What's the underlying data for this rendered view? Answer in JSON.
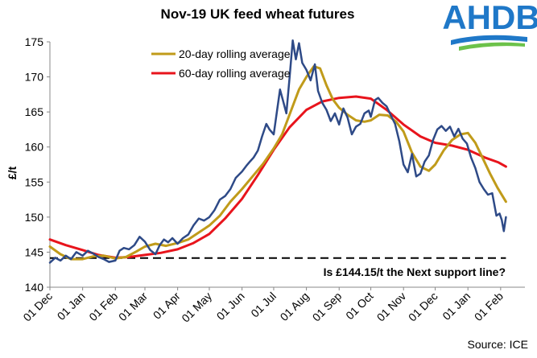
{
  "chart_data": {
    "type": "line",
    "title": "Nov-19 UK feed wheat futures",
    "ylabel": "£/t",
    "xlabel": "",
    "ylim": [
      140,
      175
    ],
    "yticks": [
      "140",
      "145",
      "150",
      "155",
      "160",
      "165",
      "170",
      "175"
    ],
    "xticks": [
      {
        "label": "01 Dec",
        "day": 0
      },
      {
        "label": "01 Jan",
        "day": 31
      },
      {
        "label": "01 Feb",
        "day": 62
      },
      {
        "label": "01 Mar",
        "day": 90
      },
      {
        "label": "01 Apr",
        "day": 121
      },
      {
        "label": "01 May",
        "day": 151
      },
      {
        "label": "01 Jun",
        "day": 182
      },
      {
        "label": "01 Jul",
        "day": 212
      },
      {
        "label": "01 Aug",
        "day": 243
      },
      {
        "label": "01 Sep",
        "day": 274
      },
      {
        "label": "01 Oct",
        "day": 304
      },
      {
        "label": "01 Nov",
        "day": 335
      },
      {
        "label": "01 Dec",
        "day": 365
      },
      {
        "label": "01 Jan",
        "day": 396
      },
      {
        "label": "01 Feb",
        "day": 427
      }
    ],
    "xlim": [
      0,
      450
    ],
    "grid": false,
    "legend_position": "top-center",
    "series": [
      {
        "name": "Nov-19 UK feed wheat futures",
        "color": "#2e4a87",
        "legend": false,
        "points": [
          [
            0,
            143.5
          ],
          [
            5,
            144.2
          ],
          [
            10,
            143.8
          ],
          [
            15,
            144.5
          ],
          [
            20,
            144.0
          ],
          [
            25,
            145.0
          ],
          [
            31,
            144.5
          ],
          [
            36,
            145.2
          ],
          [
            41,
            144.8
          ],
          [
            46,
            144.3
          ],
          [
            51,
            144.0
          ],
          [
            56,
            143.6
          ],
          [
            62,
            143.8
          ],
          [
            66,
            145.2
          ],
          [
            70,
            145.6
          ],
          [
            75,
            145.4
          ],
          [
            80,
            146.0
          ],
          [
            85,
            147.2
          ],
          [
            90,
            146.5
          ],
          [
            95,
            145.3
          ],
          [
            100,
            144.7
          ],
          [
            104,
            146.0
          ],
          [
            108,
            146.8
          ],
          [
            112,
            146.4
          ],
          [
            116,
            147.0
          ],
          [
            121,
            146.2
          ],
          [
            126,
            147.0
          ],
          [
            131,
            147.5
          ],
          [
            136,
            148.8
          ],
          [
            141,
            149.8
          ],
          [
            146,
            149.5
          ],
          [
            151,
            150.0
          ],
          [
            156,
            151.0
          ],
          [
            161,
            152.5
          ],
          [
            166,
            153.0
          ],
          [
            171,
            154.0
          ],
          [
            176,
            155.6
          ],
          [
            182,
            156.5
          ],
          [
            186,
            157.3
          ],
          [
            190,
            158.0
          ],
          [
            193,
            158.5
          ],
          [
            197,
            159.5
          ],
          [
            201,
            161.5
          ],
          [
            205,
            163.3
          ],
          [
            208,
            162.5
          ],
          [
            212,
            161.8
          ],
          [
            215,
            165.0
          ],
          [
            218,
            168.2
          ],
          [
            221,
            166.5
          ],
          [
            224,
            164.8
          ],
          [
            227,
            169.8
          ],
          [
            230,
            175.2
          ],
          [
            233,
            172.5
          ],
          [
            236,
            174.8
          ],
          [
            239,
            172.0
          ],
          [
            243,
            171.0
          ],
          [
            247,
            169.5
          ],
          [
            251,
            171.8
          ],
          [
            254,
            168.0
          ],
          [
            258,
            166.3
          ],
          [
            262,
            165.3
          ],
          [
            266,
            163.7
          ],
          [
            270,
            164.8
          ],
          [
            274,
            163.2
          ],
          [
            278,
            165.5
          ],
          [
            282,
            164.2
          ],
          [
            286,
            161.8
          ],
          [
            290,
            162.9
          ],
          [
            294,
            163.3
          ],
          [
            298,
            164.8
          ],
          [
            302,
            165.2
          ],
          [
            304,
            164.3
          ],
          [
            308,
            166.7
          ],
          [
            311,
            167.0
          ],
          [
            315,
            166.3
          ],
          [
            319,
            165.8
          ],
          [
            323,
            164.5
          ],
          [
            327,
            163.3
          ],
          [
            331,
            160.8
          ],
          [
            335,
            157.5
          ],
          [
            339,
            156.4
          ],
          [
            343,
            159.0
          ],
          [
            347,
            155.8
          ],
          [
            351,
            156.2
          ],
          [
            355,
            157.9
          ],
          [
            359,
            158.8
          ],
          [
            363,
            161.0
          ],
          [
            367,
            162.5
          ],
          [
            371,
            163.0
          ],
          [
            375,
            162.3
          ],
          [
            379,
            162.9
          ],
          [
            383,
            161.5
          ],
          [
            387,
            162.6
          ],
          [
            391,
            161.2
          ],
          [
            395,
            160.5
          ],
          [
            399,
            158.5
          ],
          [
            403,
            157.0
          ],
          [
            407,
            155.0
          ],
          [
            411,
            154.0
          ],
          [
            415,
            153.2
          ],
          [
            419,
            153.4
          ],
          [
            423,
            150.2
          ],
          [
            426,
            150.5
          ],
          [
            428,
            149.6
          ],
          [
            430,
            148.0
          ],
          [
            432,
            150.0
          ]
        ]
      },
      {
        "name": "20-day rolling average",
        "color": "#c09b1a",
        "legend": true,
        "points": [
          [
            0,
            145.8
          ],
          [
            10,
            144.7
          ],
          [
            20,
            144.0
          ],
          [
            31,
            144.0
          ],
          [
            41,
            144.4
          ],
          [
            51,
            144.5
          ],
          [
            62,
            144.1
          ],
          [
            72,
            144.3
          ],
          [
            82,
            145.1
          ],
          [
            90,
            145.8
          ],
          [
            100,
            146.2
          ],
          [
            110,
            145.9
          ],
          [
            121,
            146.3
          ],
          [
            131,
            146.8
          ],
          [
            141,
            147.8
          ],
          [
            151,
            148.8
          ],
          [
            161,
            150.2
          ],
          [
            171,
            152.2
          ],
          [
            182,
            154.0
          ],
          [
            192,
            155.8
          ],
          [
            202,
            157.6
          ],
          [
            212,
            159.8
          ],
          [
            220,
            161.8
          ],
          [
            228,
            165.0
          ],
          [
            236,
            168.2
          ],
          [
            243,
            170.0
          ],
          [
            250,
            171.5
          ],
          [
            256,
            171.2
          ],
          [
            262,
            168.8
          ],
          [
            268,
            166.8
          ],
          [
            274,
            165.6
          ],
          [
            282,
            164.6
          ],
          [
            290,
            163.8
          ],
          [
            298,
            163.6
          ],
          [
            304,
            163.8
          ],
          [
            312,
            164.6
          ],
          [
            320,
            164.5
          ],
          [
            328,
            163.6
          ],
          [
            335,
            162.2
          ],
          [
            343,
            159.2
          ],
          [
            351,
            157.2
          ],
          [
            359,
            156.6
          ],
          [
            365,
            157.5
          ],
          [
            373,
            159.5
          ],
          [
            381,
            161.0
          ],
          [
            389,
            161.8
          ],
          [
            396,
            162.0
          ],
          [
            403,
            160.6
          ],
          [
            410,
            158.4
          ],
          [
            417,
            156.2
          ],
          [
            424,
            154.2
          ],
          [
            432,
            152.2
          ]
        ]
      },
      {
        "name": "60-day rolling average",
        "color": "#e8141c",
        "legend": true,
        "points": [
          [
            0,
            146.8
          ],
          [
            15,
            146.0
          ],
          [
            31,
            145.3
          ],
          [
            46,
            144.6
          ],
          [
            62,
            144.2
          ],
          [
            75,
            144.3
          ],
          [
            90,
            144.6
          ],
          [
            105,
            144.9
          ],
          [
            121,
            145.4
          ],
          [
            136,
            146.3
          ],
          [
            151,
            147.6
          ],
          [
            166,
            149.8
          ],
          [
            182,
            152.6
          ],
          [
            197,
            156.0
          ],
          [
            212,
            159.6
          ],
          [
            227,
            162.8
          ],
          [
            243,
            165.3
          ],
          [
            258,
            166.5
          ],
          [
            274,
            167.0
          ],
          [
            290,
            167.2
          ],
          [
            304,
            166.9
          ],
          [
            319,
            165.3
          ],
          [
            335,
            163.2
          ],
          [
            351,
            161.5
          ],
          [
            365,
            160.6
          ],
          [
            381,
            160.2
          ],
          [
            396,
            159.6
          ],
          [
            412,
            158.5
          ],
          [
            425,
            157.8
          ],
          [
            432,
            157.2
          ]
        ]
      },
      {
        "name": "support line",
        "color": "#000000",
        "legend": false,
        "dashed": true,
        "points": [
          [
            0,
            144.15
          ],
          [
            432,
            144.15
          ]
        ]
      }
    ],
    "annotations": [
      "Is £144.15/t the Next support line?"
    ]
  },
  "logo_text": "AHDB",
  "source_label": "Source: ICE"
}
